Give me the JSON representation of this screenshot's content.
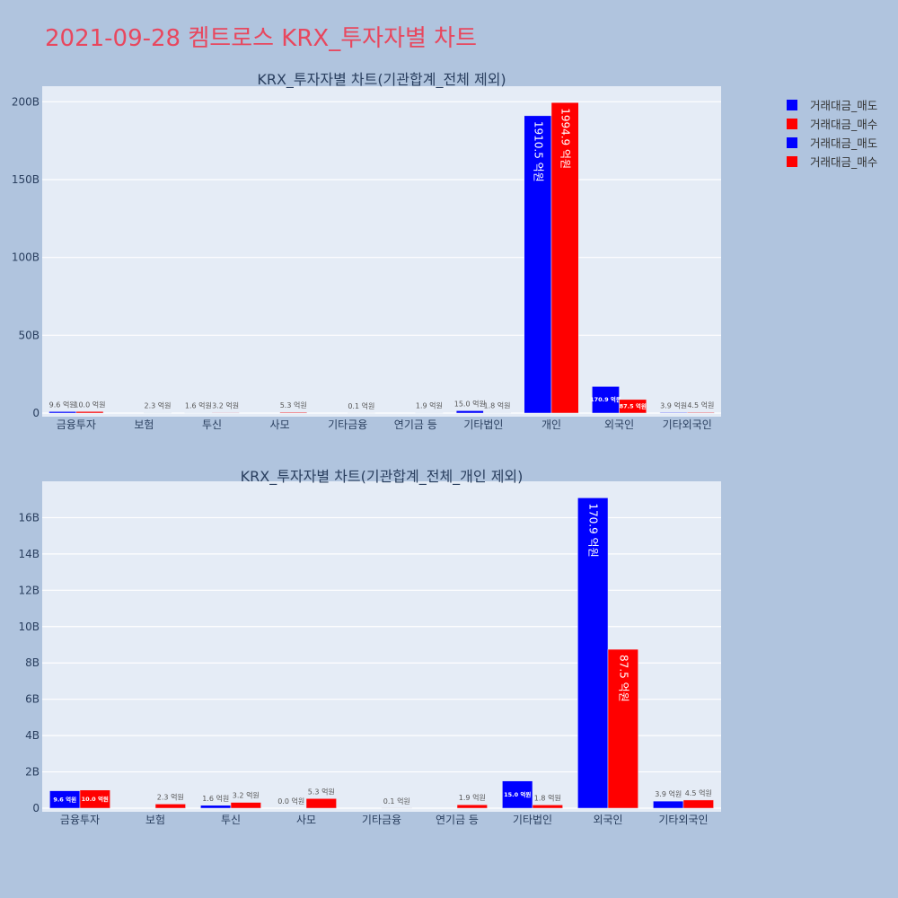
{
  "page_title": "2021-09-28 켐트로스 KRX_투자자별 차트",
  "colors": {
    "sell": "#0000ff",
    "buy": "#ff0000",
    "title": "#e8475e",
    "background": "#b0c4de",
    "plot_bg": "#e5ecf6"
  },
  "legend": [
    {
      "label": "거래대금_매도",
      "color": "#0000ff"
    },
    {
      "label": "거래대금_매수",
      "color": "#ff0000"
    },
    {
      "label": "거래대금_매도",
      "color": "#0000ff"
    },
    {
      "label": "거래대금_매수",
      "color": "#ff0000"
    }
  ],
  "chart_data": [
    {
      "type": "bar",
      "title": "KRX_투자자별 차트(기관합계_전체 제외)",
      "categories": [
        "금융투자",
        "보험",
        "투신",
        "사모",
        "기타금융",
        "연기금 등",
        "기타법인",
        "개인",
        "외국인",
        "기타외국인"
      ],
      "ylim": [
        0,
        210
      ],
      "yticks": [
        0,
        50,
        100,
        150,
        200
      ],
      "ytick_labels": [
        "0",
        "50B",
        "100B",
        "150B",
        "200B"
      ],
      "grid": true,
      "legend_position": "right",
      "series": [
        {
          "name": "거래대금_매도",
          "color": "#0000ff",
          "values": [
            0.96,
            0,
            0.16,
            0,
            0,
            0,
            1.5,
            191.05,
            17.09,
            0.39
          ],
          "labels": [
            "9.6 억원",
            "",
            "1.6 억원",
            "",
            "",
            "",
            "15.0 억원",
            "1910.5 억원",
            "170.9 억원",
            "3.9 억원"
          ]
        },
        {
          "name": "거래대금_매수",
          "color": "#ff0000",
          "values": [
            1.0,
            0.23,
            0.32,
            0.53,
            0.01,
            0.19,
            0.18,
            199.49,
            8.75,
            0.45
          ],
          "labels": [
            "10.0 억원",
            "2.3 억원",
            "3.2 억원",
            "5.3 억원",
            "0.1 억원",
            "1.9 억원",
            "1.8 억원",
            "1994.9 억원",
            "87.5 억원",
            "4.5 억원"
          ]
        }
      ]
    },
    {
      "type": "bar",
      "title": "KRX_투자자별 차트(기관합계_전체_개인 제외)",
      "categories": [
        "금융투자",
        "보험",
        "투신",
        "사모",
        "기타금융",
        "연기금 등",
        "기타법인",
        "외국인",
        "기타외국인"
      ],
      "ylim": [
        0,
        18
      ],
      "yticks": [
        0,
        2,
        4,
        6,
        8,
        10,
        12,
        14,
        16
      ],
      "ytick_labels": [
        "0",
        "2B",
        "4B",
        "6B",
        "8B",
        "10B",
        "12B",
        "14B",
        "16B"
      ],
      "grid": true,
      "legend_position": "right",
      "series": [
        {
          "name": "거래대금_매도",
          "color": "#0000ff",
          "values": [
            0.96,
            0,
            0.16,
            0.0,
            0,
            0,
            1.5,
            17.09,
            0.39
          ],
          "labels": [
            "9.6 억원",
            "",
            "1.6 억원",
            "0.0 억원",
            "",
            "",
            "15.0 억원",
            "170.9 억원",
            "3.9 억원"
          ]
        },
        {
          "name": "거래대금_매수",
          "color": "#ff0000",
          "values": [
            1.0,
            0.23,
            0.32,
            0.53,
            0.01,
            0.19,
            0.18,
            8.75,
            0.45
          ],
          "labels": [
            "10.0 억원",
            "2.3 억원",
            "3.2 억원",
            "5.3 억원",
            "0.1 억원",
            "1.9 억원",
            "1.8 억원",
            "87.5 억원",
            "4.5 억원"
          ]
        }
      ]
    }
  ]
}
